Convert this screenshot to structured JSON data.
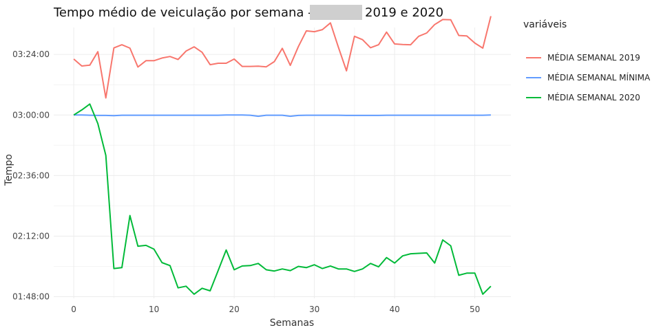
{
  "chart_data": {
    "type": "line",
    "title": "Tempo médio de veiculação por semana -",
    "title_suffix": "2019 e 2020",
    "xlabel": "Semanas",
    "ylabel": "Tempo",
    "xlim": [
      -2.5,
      54.5
    ],
    "ylim": [
      6440,
      12880
    ],
    "x_ticks": [
      0,
      10,
      20,
      30,
      40,
      50
    ],
    "y_ticks": [
      {
        "value": 6480,
        "label": "01:48:00"
      },
      {
        "value": 7920,
        "label": "02:12:00"
      },
      {
        "value": 9360,
        "label": "02:36:00"
      },
      {
        "value": 10800,
        "label": "03:00:00"
      },
      {
        "value": 12240,
        "label": "03:24:00"
      }
    ],
    "legend_title": "variáveis",
    "legend_position": "right",
    "grid": true,
    "x": [
      0,
      1,
      2,
      3,
      4,
      5,
      6,
      7,
      8,
      9,
      10,
      11,
      12,
      13,
      14,
      15,
      16,
      17,
      18,
      19,
      20,
      21,
      22,
      23,
      24,
      25,
      26,
      27,
      28,
      29,
      30,
      31,
      32,
      33,
      34,
      35,
      36,
      37,
      38,
      39,
      40,
      41,
      42,
      43,
      44,
      45,
      46,
      47,
      48,
      49,
      50,
      51,
      52
    ],
    "series": [
      {
        "name": "MÉDIA SEMANAL 2019",
        "color": "#F8766D",
        "values": [
          12130,
          11965,
          11985,
          12305,
          11205,
          12395,
          12470,
          12390,
          11940,
          12090,
          12090,
          12155,
          12190,
          12120,
          12320,
          12420,
          12290,
          11995,
          12030,
          12030,
          12130,
          11955,
          11955,
          11960,
          11945,
          12070,
          12385,
          11980,
          12425,
          12800,
          12780,
          12830,
          12990,
          12410,
          11850,
          12670,
          12590,
          12400,
          12470,
          12770,
          12490,
          12475,
          12470,
          12670,
          12750,
          12950,
          13070,
          13065,
          12690,
          12680,
          12510,
          12390,
          13150
        ]
      },
      {
        "name": "MÉDIA SEMANAL MÍNIMA",
        "color": "#619CFF",
        "values": [
          10800,
          10800,
          10795,
          10790,
          10790,
          10785,
          10795,
          10795,
          10795,
          10795,
          10795,
          10795,
          10795,
          10795,
          10795,
          10795,
          10795,
          10795,
          10795,
          10800,
          10800,
          10800,
          10795,
          10770,
          10795,
          10795,
          10795,
          10770,
          10790,
          10795,
          10795,
          10795,
          10795,
          10795,
          10790,
          10790,
          10790,
          10790,
          10790,
          10795,
          10795,
          10795,
          10795,
          10795,
          10795,
          10795,
          10795,
          10795,
          10795,
          10795,
          10795,
          10795,
          10800
        ]
      },
      {
        "name": "MÉDIA SEMANAL 2020",
        "color": "#00BA38",
        "values": [
          10800,
          10920,
          11060,
          10595,
          9840,
          7150,
          7170,
          8410,
          7680,
          7700,
          7610,
          7290,
          7220,
          6690,
          6730,
          6540,
          6680,
          6620,
          7100,
          7590,
          7120,
          7210,
          7220,
          7270,
          7120,
          7090,
          7140,
          7100,
          7200,
          7170,
          7240,
          7150,
          7210,
          7140,
          7140,
          7080,
          7140,
          7270,
          7190,
          7410,
          7280,
          7450,
          7500,
          7510,
          7520,
          7280,
          7830,
          7690,
          6990,
          7040,
          7040,
          6540,
          6730
        ]
      }
    ]
  }
}
